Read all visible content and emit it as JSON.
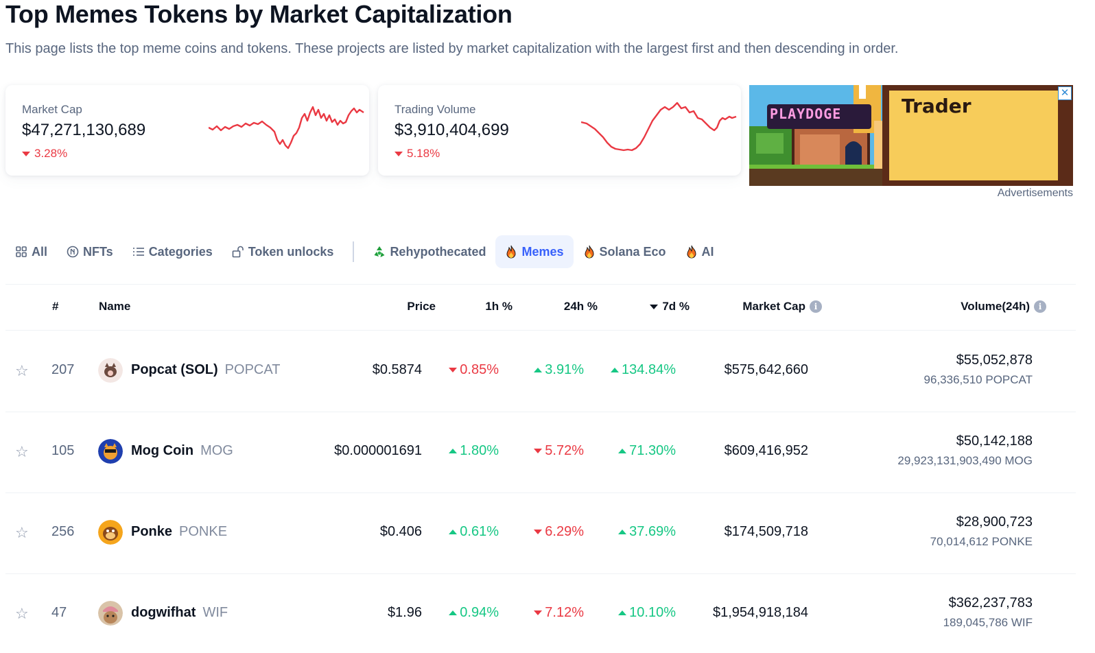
{
  "page": {
    "title": "Top Memes Tokens by Market Capitalization",
    "description": "This page lists the top meme coins and tokens. These projects are listed by market capitalization with the largest first and then descending in order."
  },
  "stats": {
    "market_cap": {
      "label": "Market Cap",
      "value": "$47,271,130,689",
      "change": "3.28%",
      "direction": "down"
    },
    "trading_volume": {
      "label": "Trading Volume",
      "value": "$3,910,404,699",
      "change": "5.18%",
      "direction": "down"
    }
  },
  "ad": {
    "brand_logo_text": "PLAYDOGE",
    "headline": "Trader",
    "close_label": "✕",
    "label": "Advertisements"
  },
  "tabs": [
    {
      "label": "All",
      "icon": "grid-icon",
      "active": false
    },
    {
      "label": "NFTs",
      "icon": "nft-icon",
      "active": false
    },
    {
      "label": "Categories",
      "icon": "list-icon",
      "active": false
    },
    {
      "label": "Token unlocks",
      "icon": "unlock-icon",
      "active": false
    },
    {
      "label": "Rehypothecated",
      "icon": "recycle-icon",
      "active": false
    },
    {
      "label": "Memes",
      "icon": "fire-icon",
      "active": true
    },
    {
      "label": "Solana Eco",
      "icon": "fire-icon",
      "active": false
    },
    {
      "label": "AI",
      "icon": "fire-icon",
      "active": false
    }
  ],
  "table": {
    "headers": {
      "rank": "#",
      "name": "Name",
      "price": "Price",
      "h1": "1h %",
      "h24": "24h %",
      "d7": "7d %",
      "market_cap": "Market Cap",
      "volume": "Volume(24h)"
    },
    "sorted_column": "d7",
    "rows": [
      {
        "rank": "207",
        "name": "Popcat (SOL)",
        "symbol": "POPCAT",
        "price": "$0.5874",
        "h1": "0.85%",
        "h1_dir": "down",
        "h24": "3.91%",
        "h24_dir": "up",
        "d7": "134.84%",
        "d7_dir": "up",
        "market_cap": "$575,642,660",
        "volume": "$55,052,878",
        "volume_sub": "96,336,510 POPCAT"
      },
      {
        "rank": "105",
        "name": "Mog Coin",
        "symbol": "MOG",
        "price": "$0.000001691",
        "h1": "1.80%",
        "h1_dir": "up",
        "h24": "5.72%",
        "h24_dir": "down",
        "d7": "71.30%",
        "d7_dir": "up",
        "market_cap": "$609,416,952",
        "volume": "$50,142,188",
        "volume_sub": "29,923,131,903,490 MOG"
      },
      {
        "rank": "256",
        "name": "Ponke",
        "symbol": "PONKE",
        "price": "$0.406",
        "h1": "0.61%",
        "h1_dir": "up",
        "h24": "6.29%",
        "h24_dir": "down",
        "d7": "37.69%",
        "d7_dir": "up",
        "market_cap": "$174,509,718",
        "volume": "$28,900,723",
        "volume_sub": "70,014,612 PONKE"
      },
      {
        "rank": "47",
        "name": "dogwifhat",
        "symbol": "WIF",
        "price": "$1.96",
        "h1": "0.94%",
        "h1_dir": "up",
        "h24": "7.12%",
        "h24_dir": "down",
        "d7": "10.10%",
        "d7_dir": "up",
        "market_cap": "$1,954,918,184",
        "volume": "$362,237,783",
        "volume_sub": "189,045,786 WIF"
      }
    ]
  },
  "colors": {
    "up": "#16c784",
    "down": "#ea3943",
    "accent": "#3861fb",
    "sparkline": "#ea3943"
  }
}
